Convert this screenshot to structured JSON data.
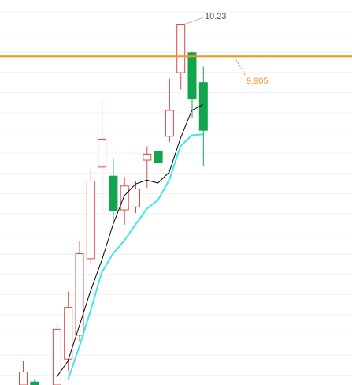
{
  "chart_data": {
    "type": "candlestick",
    "categories": [
      null,
      null,
      null,
      null,
      null,
      null,
      null,
      null,
      null,
      null,
      null,
      null,
      null,
      null,
      null,
      null,
      null
    ],
    "open": [
      6.6,
      6.63,
      null,
      6.6,
      6.86,
      7.1,
      7.87,
      8.79,
      8.7,
      8.36,
      8.39,
      8.86,
      8.95,
      9.1,
      9.74,
      9.94,
      9.64
    ],
    "high": [
      6.84,
      6.65,
      null,
      7.22,
      7.54,
      8.05,
      8.77,
      9.46,
      8.88,
      8.69,
      8.65,
      9.0,
      8.95,
      9.68,
      10.23,
      9.95,
      9.8
    ],
    "low": [
      6.6,
      6.6,
      null,
      6.6,
      6.74,
      7.04,
      7.81,
      8.33,
      8.25,
      8.21,
      8.33,
      8.58,
      8.84,
      9.04,
      9.57,
      9.28,
      8.8
    ],
    "close": [
      6.73,
      6.6,
      null,
      7.16,
      7.38,
      7.92,
      8.65,
      9.07,
      8.35,
      8.6,
      8.57,
      8.92,
      8.84,
      9.36,
      10.22,
      9.48,
      9.16
    ],
    "up_color": "#e04848",
    "down_color": "#13a44e",
    "series": [
      {
        "color": "#000000",
        "values": [
          null,
          null,
          null,
          6.68,
          6.84,
          7.19,
          7.54,
          7.85,
          8.21,
          8.5,
          8.62,
          8.66,
          8.63,
          8.74,
          9.08,
          9.36,
          9.42
        ]
      },
      {
        "color": "#3fe6f2",
        "values": [
          null,
          null,
          null,
          null,
          6.65,
          6.98,
          7.34,
          7.73,
          7.92,
          8.05,
          8.21,
          8.37,
          8.46,
          8.66,
          9.0,
          9.11,
          9.12
        ]
      }
    ],
    "ylim": [
      6.6,
      10.47
    ],
    "annotations": [
      {
        "label": "10.23",
        "value": 10.23,
        "color": "#555555"
      }
    ],
    "hline": {
      "value": 9.905,
      "label": "9.905",
      "color": "#f7931e"
    }
  }
}
